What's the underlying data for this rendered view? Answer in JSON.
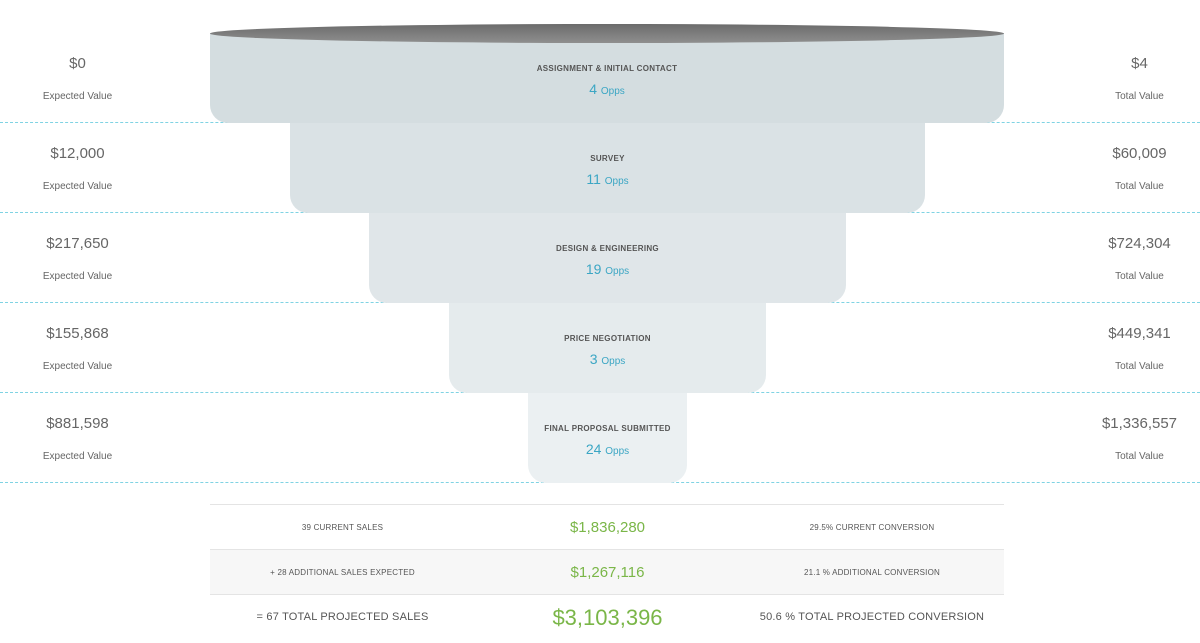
{
  "header": {
    "title_fragment": "... ... ... ..."
  },
  "stages": [
    {
      "name": "ASSIGNMENT & INITIAL CONTACT",
      "opps_count": "4",
      "opps_unit": "Opps",
      "expected_value": "$0",
      "expected_label": "Expected Value",
      "total_value": "$4",
      "total_label": "Total Value",
      "fill": "#d4dde0"
    },
    {
      "name": "SURVEY",
      "opps_count": "11",
      "opps_unit": "Opps",
      "expected_value": "$12,000",
      "expected_label": "Expected Value",
      "total_value": "$60,009",
      "total_label": "Total Value",
      "fill": "#dae2e5"
    },
    {
      "name": "DESIGN & ENGINEERING",
      "opps_count": "19",
      "opps_unit": "Opps",
      "expected_value": "$217,650",
      "expected_label": "Expected Value",
      "total_value": "$724,304",
      "total_label": "Total Value",
      "fill": "#e0e6e9"
    },
    {
      "name": "PRICE NEGOTIATION",
      "opps_count": "3",
      "opps_unit": "Opps",
      "expected_value": "$155,868",
      "expected_label": "Expected Value",
      "total_value": "$449,341",
      "total_label": "Total Value",
      "fill": "#e5ebed"
    },
    {
      "name": "FINAL PROPOSAL SUBMITTED",
      "opps_count": "24",
      "opps_unit": "Opps",
      "expected_value": "$881,598",
      "expected_label": "Expected Value",
      "total_value": "$1,336,557",
      "total_label": "Total Value",
      "fill": "#ebf0f2"
    }
  ],
  "summary": {
    "current": {
      "sales_label": "39 CURRENT SALES",
      "amount": "$1,836,280",
      "conversion": "29.5% CURRENT CONVERSION"
    },
    "additional": {
      "sales_label": "+ 28 ADDITIONAL SALES EXPECTED",
      "amount": "$1,267,116",
      "conversion": "21.1 % ADDITIONAL CONVERSION"
    },
    "total": {
      "sales_label": "= 67 TOTAL PROJECTED SALES",
      "amount": "$3,103,396",
      "conversion": "50.6 % TOTAL PROJECTED CONVERSION"
    }
  },
  "colors": {
    "accent_blue": "#3ba6c4",
    "money_green": "#7ab648",
    "divider": "#7fd3e3"
  }
}
